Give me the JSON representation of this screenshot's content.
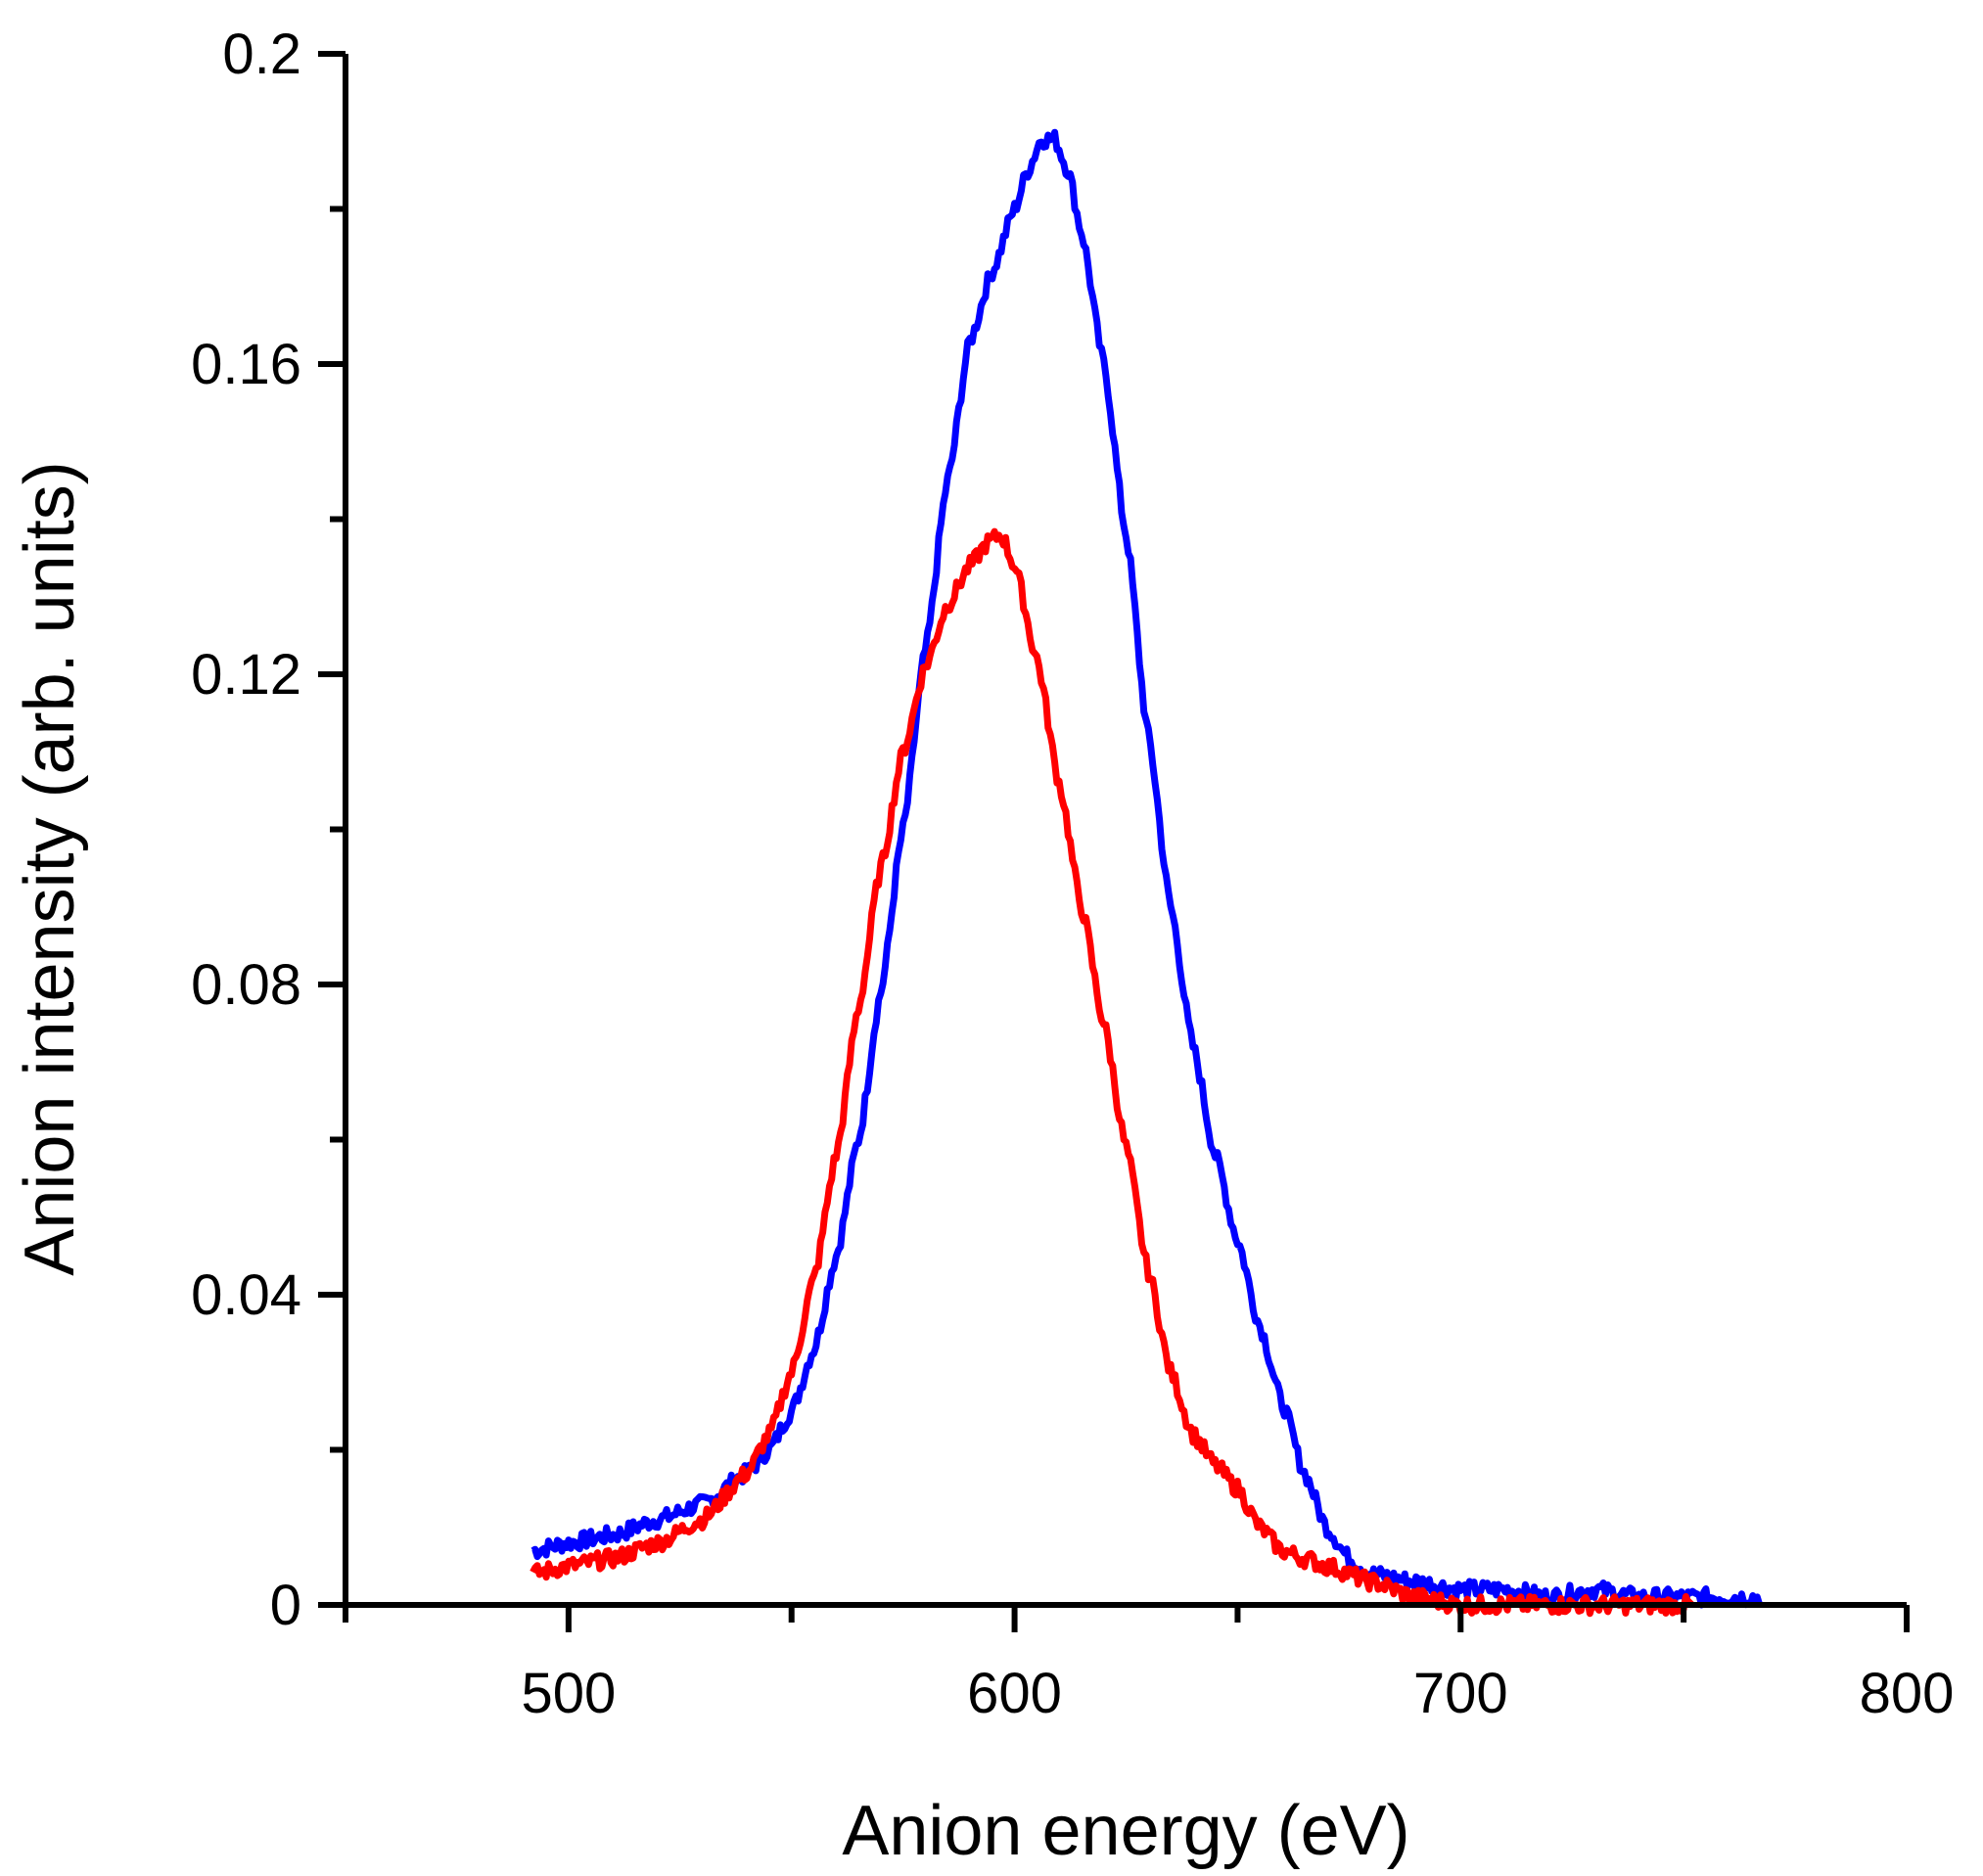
{
  "chart_data": {
    "type": "line",
    "title": "",
    "xlabel": "Anion energy (eV)",
    "ylabel": "Anion intensity (arb. units)",
    "xlim": [
      450,
      800
    ],
    "ylim": [
      0,
      0.2
    ],
    "grid": false,
    "legend": "none",
    "x_ticks": [
      {
        "value": 500,
        "label": "500"
      },
      {
        "value": 600,
        "label": "600"
      },
      {
        "value": 700,
        "label": "700"
      },
      {
        "value": 800,
        "label": "800"
      }
    ],
    "x_minor_ticks": [
      450,
      550,
      650,
      750
    ],
    "y_ticks": [
      {
        "value": 0,
        "label": "0"
      },
      {
        "value": 0.04,
        "label": "0.04"
      },
      {
        "value": 0.08,
        "label": "0.08"
      },
      {
        "value": 0.12,
        "label": "0.12"
      },
      {
        "value": 0.16,
        "label": "0.16"
      },
      {
        "value": 0.2,
        "label": "0.2"
      }
    ],
    "y_minor_ticks": [
      0.02,
      0.06,
      0.1,
      0.14,
      0.18
    ],
    "series": [
      {
        "name": "blue",
        "color": "#0000ff",
        "x": [
          492,
          500,
          510,
          520,
          530,
          540,
          545,
          550,
          555,
          560,
          565,
          570,
          575,
          580,
          585,
          590,
          595,
          600,
          603,
          606,
          609,
          612,
          615,
          620,
          625,
          630,
          635,
          640,
          645,
          650,
          655,
          660,
          665,
          670,
          675,
          680,
          690,
          700,
          710,
          720,
          730,
          740,
          750,
          760,
          767
        ],
        "y": [
          0.007,
          0.008,
          0.009,
          0.011,
          0.013,
          0.017,
          0.02,
          0.025,
          0.033,
          0.045,
          0.06,
          0.079,
          0.1,
          0.123,
          0.145,
          0.163,
          0.172,
          0.18,
          0.185,
          0.189,
          0.189,
          0.185,
          0.177,
          0.16,
          0.138,
          0.112,
          0.09,
          0.072,
          0.058,
          0.047,
          0.036,
          0.026,
          0.017,
          0.01,
          0.006,
          0.004,
          0.003,
          0.002,
          0.002,
          0.001,
          0.002,
          0.001,
          0.001,
          0.001,
          0.001
        ]
      },
      {
        "name": "red",
        "color": "#ff0000",
        "x": [
          492,
          500,
          510,
          520,
          530,
          540,
          545,
          550,
          555,
          560,
          565,
          570,
          575,
          580,
          585,
          590,
          594,
          597,
          600,
          605,
          610,
          615,
          620,
          625,
          630,
          635,
          640,
          645,
          650,
          655,
          660,
          665,
          670,
          680,
          690,
          700,
          710,
          720,
          730,
          740,
          752
        ],
        "y": [
          0.004,
          0.005,
          0.006,
          0.008,
          0.011,
          0.017,
          0.022,
          0.03,
          0.042,
          0.058,
          0.077,
          0.095,
          0.11,
          0.121,
          0.129,
          0.134,
          0.137,
          0.138,
          0.134,
          0.122,
          0.106,
          0.09,
          0.075,
          0.059,
          0.043,
          0.03,
          0.022,
          0.018,
          0.015,
          0.01,
          0.007,
          0.006,
          0.005,
          0.003,
          0.001,
          0.0,
          0.0,
          0.0,
          0.0,
          0.0,
          0.0
        ]
      }
    ]
  }
}
